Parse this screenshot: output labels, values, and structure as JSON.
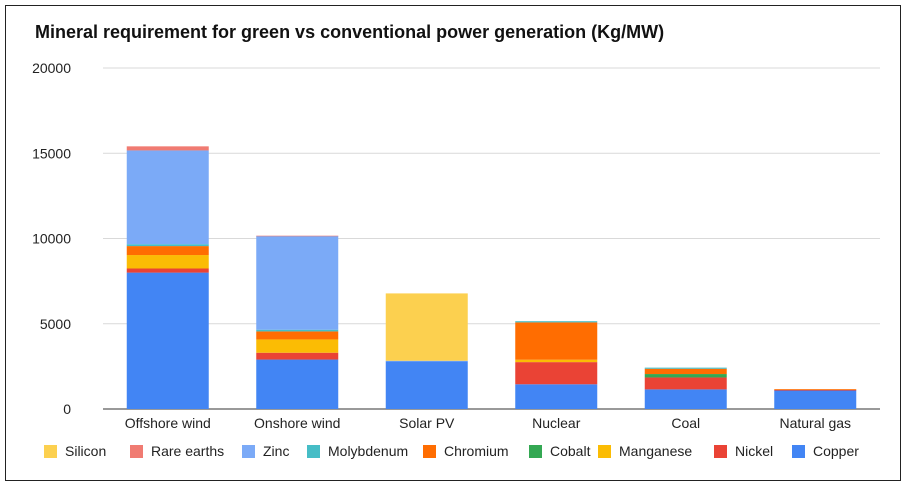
{
  "chart_data": {
    "type": "bar",
    "stacked": true,
    "title": "Mineral requirement for green vs conventional power generation (Kg/MW)",
    "xlabel": "",
    "ylabel": "",
    "ylim": [
      0,
      20000
    ],
    "yticks": [
      "0",
      "5000",
      "10000",
      "15000",
      "20000"
    ],
    "grid": true,
    "legend_position": "bottom",
    "categories": [
      "Offshore wind",
      "Onshore wind",
      "Solar PV",
      "Nuclear",
      "Coal",
      "Natural gas"
    ],
    "series": [
      {
        "name": "Copper",
        "color": "#4285f4",
        "values": [
          8000,
          2900,
          2800,
          1450,
          1150,
          1100
        ]
      },
      {
        "name": "Nickel",
        "color": "#ea4335",
        "values": [
          240,
          400,
          0,
          1300,
          700,
          16
        ]
      },
      {
        "name": "Manganese",
        "color": "#fbbc04",
        "values": [
          790,
          780,
          0,
          140,
          0,
          0
        ]
      },
      {
        "name": "Cobalt",
        "color": "#34a853",
        "values": [
          0,
          0,
          0,
          0,
          200,
          0
        ]
      },
      {
        "name": "Chromium",
        "color": "#ff6d01",
        "values": [
          525,
          470,
          0,
          2190,
          310,
          48
        ]
      },
      {
        "name": "Molybdenum",
        "color": "#46bdc6",
        "values": [
          110,
          100,
          0,
          70,
          66,
          0
        ]
      },
      {
        "name": "Zinc",
        "color": "#7baaf7",
        "values": [
          5500,
          5500,
          30,
          0,
          0,
          0
        ]
      },
      {
        "name": "Rare earths",
        "color": "#f07b72",
        "values": [
          240,
          14,
          0,
          0,
          0,
          0
        ]
      },
      {
        "name": "Silicon",
        "color": "#fcd04f",
        "values": [
          0,
          0,
          3950,
          0,
          0,
          0
        ]
      }
    ],
    "legend_order": [
      "Silicon",
      "Rare earths",
      "Zinc",
      "Molybdenum",
      "Chromium",
      "Cobalt",
      "Manganese",
      "Nickel",
      "Copper"
    ]
  }
}
